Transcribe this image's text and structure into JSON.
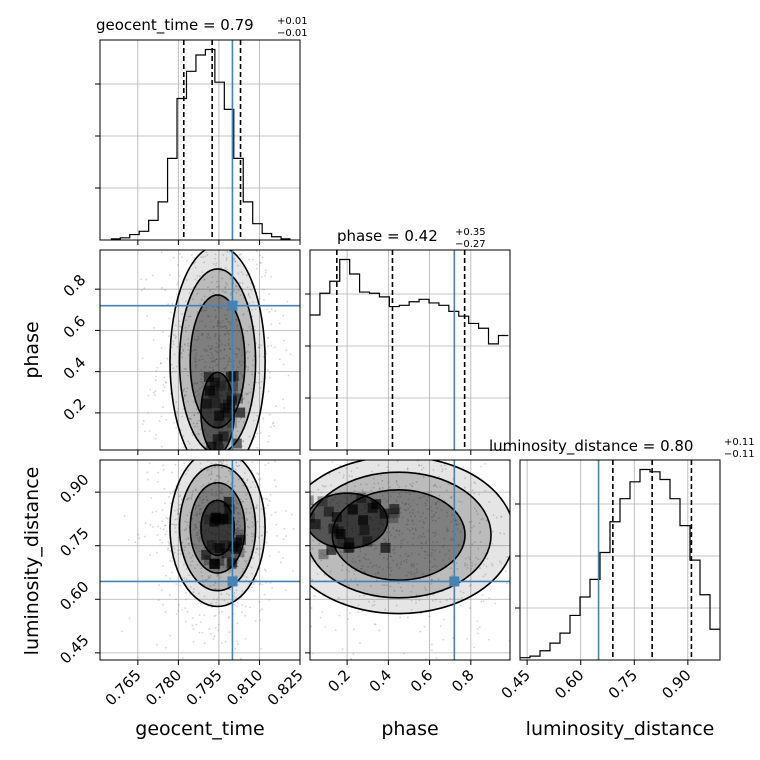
{
  "colors": {
    "truth": "#4682b4",
    "hist": "#000000",
    "grid": "#b0b0b0",
    "scatter": "#888888",
    "density_dark": "#000000"
  },
  "chart_data": {
    "type": "corner",
    "parameters": [
      "geocent_time",
      "phase",
      "luminosity_distance"
    ],
    "truths": {
      "geocent_time": 0.8,
      "phase": 0.72,
      "luminosity_distance": 0.65
    },
    "ranges": {
      "geocent_time": [
        0.751,
        0.825
      ],
      "phase": [
        0.02,
        0.99
      ],
      "luminosity_distance": [
        0.43,
        0.99
      ]
    },
    "ticks": {
      "geocent_time": [
        "0.765",
        "0.780",
        "0.795",
        "0.810",
        "0.825"
      ],
      "phase": [
        "0.2",
        "0.4",
        "0.6",
        "0.8"
      ],
      "luminosity_distance": [
        "0.45",
        "0.60",
        "0.75",
        "0.90"
      ]
    },
    "titles": {
      "geocent_time": {
        "name": "geocent_time",
        "median": "0.79",
        "plus": "+0.01",
        "minus": "−0.01"
      },
      "phase": {
        "name": "phase",
        "median": "0.42",
        "plus": "+0.35",
        "minus": "−0.27"
      },
      "luminosity_distance": {
        "name": "luminosity_distance",
        "median": "0.80",
        "plus": "+0.11",
        "minus": "−0.11"
      }
    },
    "quantiles": {
      "geocent_time": [
        0.782,
        0.7925,
        0.803
      ],
      "phase": [
        0.15,
        0.42,
        0.77
      ],
      "luminosity_distance": [
        0.69,
        0.8,
        0.91
      ]
    },
    "marginals": {
      "geocent_time": {
        "edges": [
          0.755,
          0.7585,
          0.762,
          0.7655,
          0.769,
          0.7725,
          0.776,
          0.7795,
          0.783,
          0.7865,
          0.79,
          0.7935,
          0.797,
          0.8005,
          0.804,
          0.8075,
          0.811,
          0.8145,
          0.818,
          0.8215
        ],
        "counts": [
          1,
          2,
          5,
          8,
          18,
          35,
          75,
          130,
          155,
          170,
          175,
          145,
          120,
          75,
          35,
          15,
          6,
          3,
          1
        ]
      },
      "phase": {
        "edges": [
          0.02,
          0.0681,
          0.1162,
          0.1643,
          0.2124,
          0.2605,
          0.3086,
          0.3567,
          0.4048,
          0.4529,
          0.501,
          0.5491,
          0.5972,
          0.6453,
          0.6934,
          0.7415,
          0.7896,
          0.8377,
          0.8858,
          0.9339,
          0.982
        ],
        "counts": [
          560,
          650,
          700,
          790,
          730,
          655,
          650,
          635,
          595,
          600,
          615,
          625,
          610,
          600,
          575,
          555,
          525,
          505,
          440,
          475
        ]
      },
      "luminosity_distance": {
        "edges": [
          0.43,
          0.458,
          0.486,
          0.514,
          0.542,
          0.57,
          0.598,
          0.626,
          0.654,
          0.682,
          0.71,
          0.738,
          0.766,
          0.794,
          0.822,
          0.85,
          0.878,
          0.906,
          0.934,
          0.962,
          0.99
        ],
        "counts": [
          3,
          5,
          12,
          22,
          35,
          58,
          82,
          105,
          140,
          180,
          210,
          232,
          248,
          245,
          235,
          210,
          175,
          130,
          85,
          40
        ]
      }
    },
    "pairs": [
      {
        "x": "geocent_time",
        "y": "phase",
        "mean": [
          0.7945,
          0.45
        ],
        "sd": [
          0.0088,
          0.28
        ],
        "rho": 0.0,
        "core": [
          0.7945,
          0.2
        ]
      },
      {
        "x": "geocent_time",
        "y": "luminosity_distance",
        "mean": [
          0.7945,
          0.8
        ],
        "sd": [
          0.0088,
          0.11
        ],
        "rho": 0.0
      },
      {
        "x": "phase",
        "y": "luminosity_distance",
        "mean": [
          0.45,
          0.78
        ],
        "sd": [
          0.28,
          0.11
        ],
        "rho": -0.15,
        "core": [
          0.2,
          0.82
        ]
      }
    ]
  }
}
